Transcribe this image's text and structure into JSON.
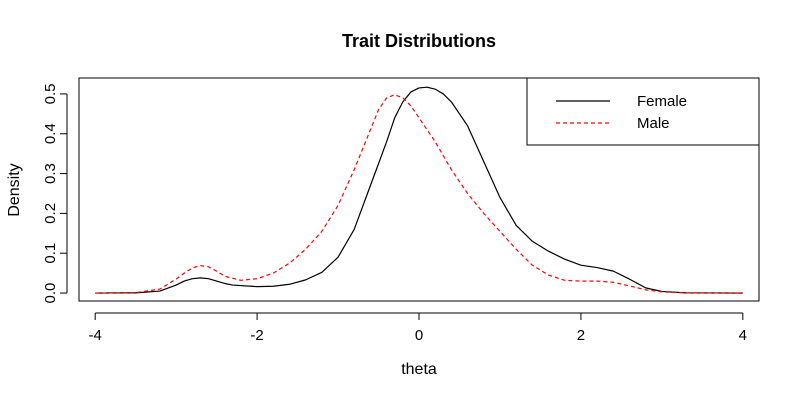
{
  "chart_data": {
    "type": "line",
    "title": "Trait Distributions",
    "xlabel": "theta",
    "ylabel": "Density",
    "xlim": [
      -4.2,
      4.2
    ],
    "ylim": [
      -0.02,
      0.54
    ],
    "xticks": [
      -4,
      -2,
      0,
      2,
      4
    ],
    "xtick_labels": [
      "-4",
      "-2",
      "0",
      "2",
      "4"
    ],
    "yticks": [
      0.0,
      0.1,
      0.2,
      0.3,
      0.4,
      0.5
    ],
    "ytick_labels": [
      "0.0",
      "0.1",
      "0.2",
      "0.3",
      "0.4",
      "0.5"
    ],
    "grid": false,
    "legend_position": "top-right",
    "series": [
      {
        "name": "Female",
        "color": "#000000",
        "dash": "solid",
        "x": [
          -4.0,
          -3.5,
          -3.2,
          -3.0,
          -2.9,
          -2.8,
          -2.7,
          -2.6,
          -2.5,
          -2.4,
          -2.3,
          -2.0,
          -1.8,
          -1.6,
          -1.4,
          -1.2,
          -1.0,
          -0.8,
          -0.6,
          -0.4,
          -0.3,
          -0.2,
          -0.1,
          0.0,
          0.1,
          0.2,
          0.3,
          0.4,
          0.6,
          0.8,
          1.0,
          1.2,
          1.4,
          1.6,
          1.8,
          2.0,
          2.2,
          2.4,
          2.6,
          2.8,
          3.0,
          3.3,
          4.0
        ],
        "y": [
          0.0,
          0.0005,
          0.005,
          0.02,
          0.03,
          0.036,
          0.038,
          0.036,
          0.03,
          0.024,
          0.02,
          0.016,
          0.017,
          0.022,
          0.033,
          0.052,
          0.09,
          0.16,
          0.27,
          0.38,
          0.44,
          0.48,
          0.505,
          0.515,
          0.517,
          0.512,
          0.5,
          0.48,
          0.42,
          0.33,
          0.24,
          0.17,
          0.13,
          0.105,
          0.085,
          0.07,
          0.064,
          0.055,
          0.035,
          0.013,
          0.004,
          0.0005,
          0.0
        ]
      },
      {
        "name": "Male",
        "color": "#ff0000",
        "dash": "dashed",
        "x": [
          -4.0,
          -3.5,
          -3.2,
          -3.0,
          -2.9,
          -2.8,
          -2.7,
          -2.6,
          -2.5,
          -2.4,
          -2.2,
          -2.0,
          -1.8,
          -1.6,
          -1.4,
          -1.2,
          -1.0,
          -0.8,
          -0.6,
          -0.5,
          -0.4,
          -0.3,
          -0.2,
          -0.1,
          0.0,
          0.2,
          0.4,
          0.6,
          0.8,
          1.0,
          1.2,
          1.4,
          1.6,
          1.8,
          2.0,
          2.2,
          2.4,
          2.6,
          2.8,
          3.0,
          3.3,
          4.0
        ],
        "y": [
          0.0,
          0.001,
          0.01,
          0.035,
          0.05,
          0.063,
          0.069,
          0.066,
          0.055,
          0.042,
          0.032,
          0.036,
          0.05,
          0.075,
          0.11,
          0.155,
          0.22,
          0.31,
          0.41,
          0.46,
          0.49,
          0.498,
          0.49,
          0.47,
          0.44,
          0.38,
          0.31,
          0.25,
          0.2,
          0.155,
          0.11,
          0.07,
          0.045,
          0.032,
          0.03,
          0.03,
          0.027,
          0.018,
          0.008,
          0.003,
          0.0005,
          0.0
        ]
      }
    ]
  }
}
